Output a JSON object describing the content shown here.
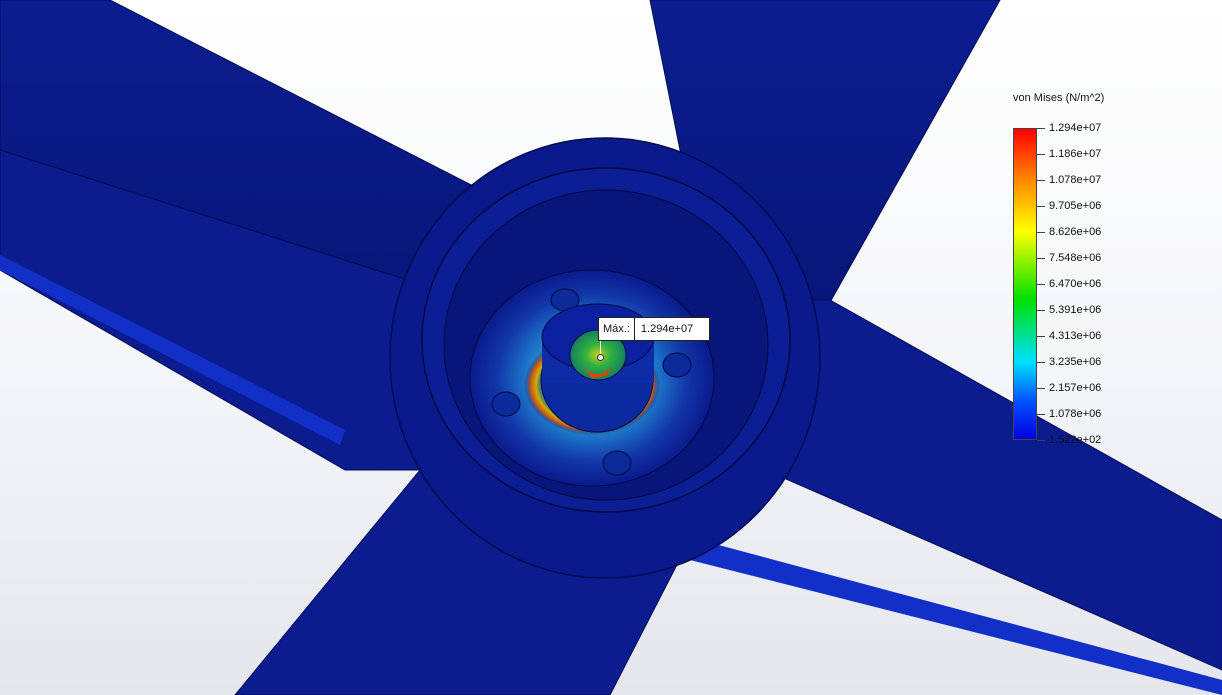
{
  "legend": {
    "title": "von Mises (N/m^2)",
    "labels": [
      "1.294e+07",
      "1.186e+07",
      "1.078e+07",
      "9.705e+06",
      "8.626e+06",
      "7.548e+06",
      "6.470e+06",
      "5.391e+06",
      "4.313e+06",
      "3.235e+06",
      "2.157e+06",
      "1.078e+06",
      "1.522e+02"
    ],
    "colors": {
      "max": "#ff0000",
      "high": "#ff8c00",
      "mid_high": "#ffff00",
      "mid": "#00e000",
      "mid_low": "#00e0ff",
      "low": "#0050ff",
      "min": "#0000e0"
    }
  },
  "probe": {
    "name": "Máx.:",
    "value": "1.294e+07"
  },
  "model": {
    "base_color": "#0a1a8c",
    "dark_color": "#06106a",
    "hot_color": "#ff2a00"
  }
}
